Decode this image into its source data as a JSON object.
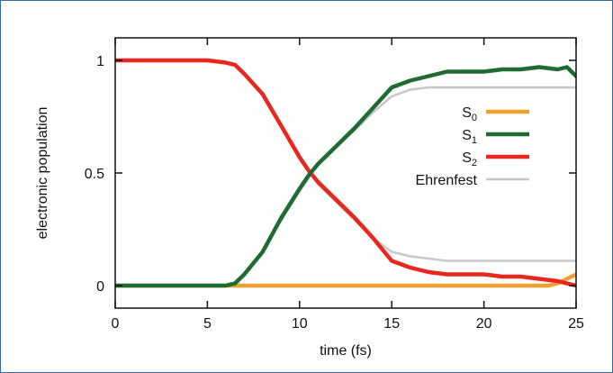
{
  "chart_data": {
    "type": "line",
    "xlabel": "time (fs)",
    "ylabel": "electronic population",
    "xlim": [
      0,
      25
    ],
    "ylim": [
      -0.1,
      1.1
    ],
    "x_ticks": [
      "0",
      "5",
      "10",
      "15",
      "20",
      "25"
    ],
    "y_ticks": [
      "0",
      "0.5",
      "1"
    ],
    "grid": false,
    "legend_position": "right",
    "series": [
      {
        "name": "S0",
        "label_main": "S",
        "label_sub": "0",
        "color": "#f0a030",
        "x": [
          0,
          5,
          10,
          15,
          20,
          23.5,
          24,
          24.5,
          25
        ],
        "y": [
          0.0,
          0.0,
          0.0,
          0.0,
          0.0,
          0.0,
          0.01,
          0.03,
          0.05
        ]
      },
      {
        "name": "S1",
        "label_main": "S",
        "label_sub": "1",
        "color": "#1f6b32",
        "x": [
          0,
          6,
          6.5,
          7,
          8,
          9,
          10,
          10.5,
          11,
          12,
          13,
          14,
          15,
          16,
          17,
          18,
          19,
          20,
          21,
          22,
          23,
          24,
          24.5,
          25
        ],
        "y": [
          0.0,
          0.0,
          0.01,
          0.05,
          0.15,
          0.3,
          0.43,
          0.49,
          0.54,
          0.62,
          0.7,
          0.79,
          0.88,
          0.91,
          0.93,
          0.95,
          0.95,
          0.95,
          0.96,
          0.96,
          0.97,
          0.96,
          0.97,
          0.93
        ]
      },
      {
        "name": "S2",
        "label_main": "S",
        "label_sub": "2",
        "color": "#e8281e",
        "x": [
          0,
          5,
          6,
          6.5,
          7,
          8,
          9,
          10,
          10.5,
          11,
          12,
          13,
          14,
          15,
          16,
          17,
          18,
          19,
          20,
          21,
          22,
          23,
          24,
          25
        ],
        "y": [
          1.0,
          1.0,
          0.99,
          0.98,
          0.94,
          0.85,
          0.71,
          0.57,
          0.51,
          0.46,
          0.38,
          0.3,
          0.21,
          0.11,
          0.08,
          0.06,
          0.05,
          0.05,
          0.05,
          0.04,
          0.04,
          0.03,
          0.02,
          0.0
        ]
      },
      {
        "name": "Ehrenfest",
        "label_main": "Ehrenfest",
        "label_sub": "",
        "color": "#c8c8c8",
        "x": [
          0,
          5,
          6,
          6.5,
          7,
          8,
          9,
          10,
          10.5,
          11,
          12,
          13,
          14,
          15,
          16,
          17,
          18,
          19,
          20,
          21,
          22,
          23,
          24,
          25
        ],
        "y": [
          1.0,
          1.0,
          0.99,
          0.98,
          0.94,
          0.85,
          0.71,
          0.57,
          0.51,
          0.45,
          0.37,
          0.29,
          0.21,
          0.15,
          0.13,
          0.12,
          0.11,
          0.11,
          0.11,
          0.11,
          0.11,
          0.11,
          0.11,
          0.11
        ]
      },
      {
        "name": "Ehrenfest (complement)",
        "label_main": "",
        "label_sub": "",
        "color": "#c8c8c8",
        "x": [
          0,
          6,
          6.5,
          7,
          8,
          9,
          10,
          10.5,
          11,
          12,
          13,
          14,
          15,
          16,
          17,
          18,
          19,
          20,
          21,
          22,
          23,
          24,
          25
        ],
        "y": [
          0.0,
          0.0,
          0.01,
          0.05,
          0.15,
          0.29,
          0.42,
          0.48,
          0.54,
          0.62,
          0.69,
          0.77,
          0.84,
          0.87,
          0.88,
          0.88,
          0.88,
          0.88,
          0.88,
          0.88,
          0.88,
          0.88,
          0.88
        ]
      }
    ],
    "legend_order": [
      0,
      1,
      2,
      3
    ]
  }
}
